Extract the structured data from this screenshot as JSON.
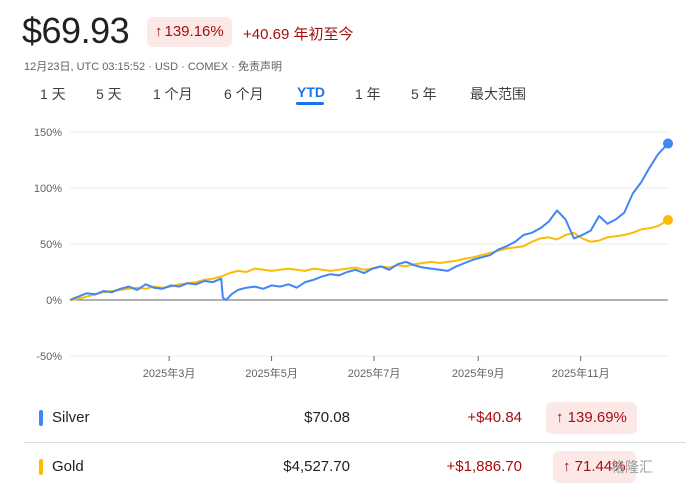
{
  "header": {
    "price": "$69.93",
    "change_pct": "139.16%",
    "change_arrow": "↑",
    "change_abs": "+40.69 年初至今",
    "meta": "12月23日, UTC 03:15:52 · USD · COMEX · 免责声明"
  },
  "tabs": [
    {
      "label": "1 天"
    },
    {
      "label": "5 天"
    },
    {
      "label": "1 个月"
    },
    {
      "label": "6 个月"
    },
    {
      "label": "YTD",
      "active": true
    },
    {
      "label": "1 年"
    },
    {
      "label": "5 年"
    },
    {
      "label": "最大范围"
    }
  ],
  "chart_data": {
    "type": "line",
    "y_ticks": [
      "150%",
      "100%",
      "50%",
      "0%",
      "-50%"
    ],
    "y_tick_values": [
      150,
      100,
      50,
      0,
      -50
    ],
    "ylim": [
      -50,
      150
    ],
    "x_ticks": [
      "2025年3月",
      "2025年5月",
      "2025年7月",
      "2025年9月",
      "2025年11月"
    ],
    "x_tick_days": [
      59,
      120,
      181,
      243,
      304
    ],
    "xlim_days": [
      0,
      356
    ],
    "grid": true,
    "series": [
      {
        "name": "Silver",
        "color": "#4285f4",
        "x": [
          0,
          5,
          10,
          15,
          20,
          25,
          30,
          35,
          40,
          45,
          50,
          55,
          60,
          65,
          70,
          75,
          80,
          85,
          90,
          91,
          93,
          96,
          100,
          105,
          110,
          115,
          120,
          125,
          130,
          135,
          140,
          145,
          150,
          155,
          160,
          165,
          170,
          175,
          180,
          185,
          190,
          195,
          200,
          205,
          210,
          215,
          220,
          225,
          230,
          235,
          240,
          245,
          250,
          255,
          260,
          265,
          270,
          275,
          280,
          285,
          290,
          295,
          300,
          305,
          310,
          315,
          320,
          325,
          330,
          335,
          340,
          345,
          350,
          356
        ],
        "values": [
          0,
          3,
          6,
          5,
          8,
          7,
          10,
          12,
          9,
          14,
          11,
          10,
          13,
          12,
          15,
          14,
          17,
          16,
          19,
          2,
          0,
          5,
          9,
          11,
          12,
          10,
          13,
          12,
          14,
          11,
          16,
          18,
          21,
          23,
          22,
          25,
          27,
          24,
          28,
          30,
          27,
          32,
          34,
          31,
          29,
          28,
          27,
          26,
          30,
          33,
          36,
          38,
          40,
          45,
          48,
          52,
          58,
          60,
          64,
          70,
          80,
          72,
          55,
          58,
          62,
          75,
          68,
          72,
          78,
          95,
          105,
          118,
          130,
          139.69
        ]
      },
      {
        "name": "Gold",
        "color": "#fbbc04",
        "x": [
          0,
          5,
          10,
          15,
          20,
          25,
          30,
          35,
          40,
          45,
          50,
          55,
          60,
          65,
          70,
          75,
          80,
          85,
          90,
          95,
          100,
          105,
          110,
          115,
          120,
          125,
          130,
          135,
          140,
          145,
          150,
          155,
          160,
          165,
          170,
          175,
          180,
          185,
          190,
          195,
          200,
          205,
          210,
          215,
          220,
          225,
          230,
          235,
          240,
          245,
          250,
          255,
          260,
          265,
          270,
          275,
          280,
          285,
          290,
          295,
          300,
          305,
          310,
          315,
          320,
          325,
          330,
          335,
          340,
          345,
          350,
          356
        ],
        "values": [
          0,
          1,
          3,
          5,
          7,
          8,
          9,
          10,
          11,
          10,
          12,
          11,
          12,
          14,
          15,
          16,
          18,
          19,
          21,
          24,
          26,
          25,
          28,
          27,
          26,
          27,
          28,
          27,
          26,
          28,
          27,
          26,
          27,
          28,
          29,
          27,
          28,
          30,
          29,
          31,
          30,
          32,
          33,
          34,
          33,
          34,
          35,
          37,
          38,
          40,
          42,
          44,
          46,
          47,
          48,
          52,
          55,
          56,
          54,
          58,
          60,
          55,
          52,
          53,
          56,
          57,
          58,
          60,
          63,
          64,
          66,
          71.44
        ]
      }
    ]
  },
  "rows": [
    {
      "name": "Silver",
      "color": "#4285f4",
      "price": "$70.08",
      "abs": "+$40.84",
      "pct": "↑ 139.69%"
    },
    {
      "name": "Gold",
      "color": "#fbbc04",
      "price": "$4,527.70",
      "abs": "+$1,886.70",
      "pct": "↑ 71.44%"
    }
  ],
  "watermark": "格隆汇"
}
